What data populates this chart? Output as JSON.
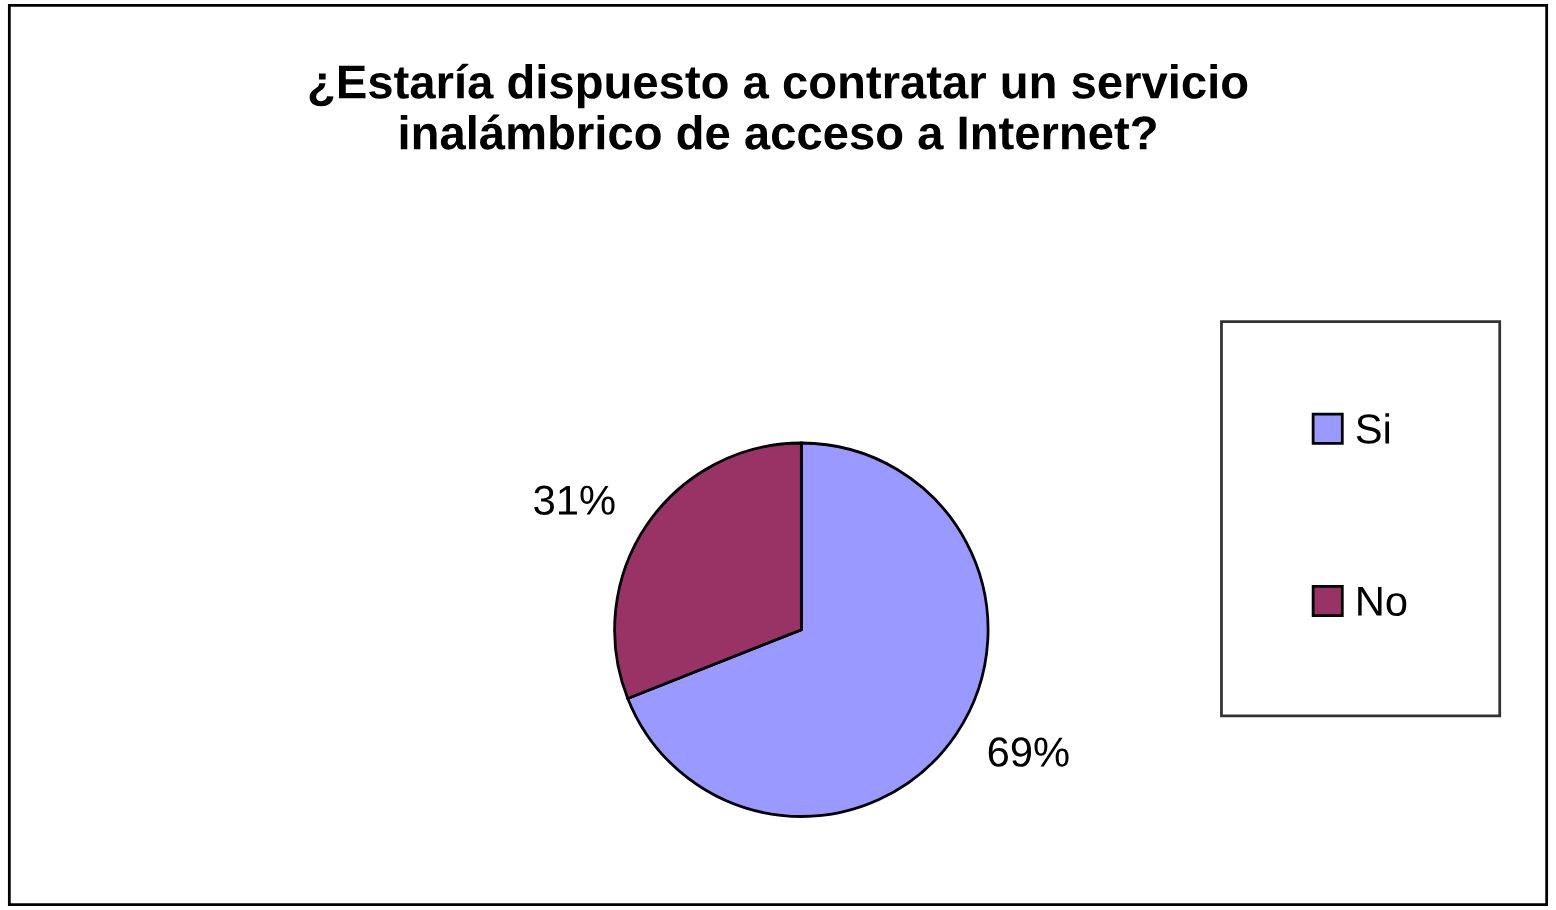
{
  "chart_data": {
    "type": "pie",
    "title": "¿Estaría dispuesto a contratar un servicio inalámbrico de acceso a Internet?",
    "categories": [
      "Si",
      "No"
    ],
    "values": [
      69,
      31
    ],
    "value_labels": [
      "69%",
      "31%"
    ],
    "colors": [
      "#9999ff",
      "#993366"
    ],
    "legend": "right"
  }
}
